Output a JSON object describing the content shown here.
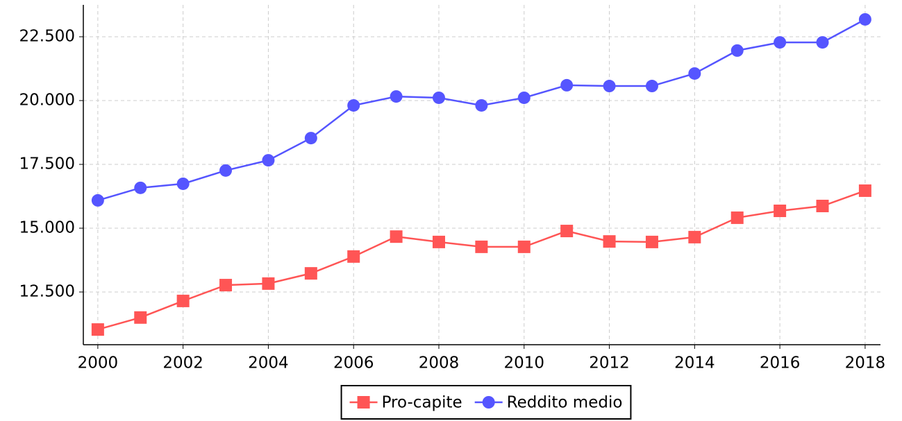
{
  "chart_data": {
    "type": "line",
    "x": [
      2000,
      2001,
      2002,
      2003,
      2004,
      2005,
      2006,
      2007,
      2008,
      2009,
      2010,
      2011,
      2012,
      2013,
      2014,
      2015,
      2016,
      2017,
      2018
    ],
    "series": [
      {
        "name": "Pro-capite",
        "color": "#ff5555",
        "marker": "square",
        "values": [
          11030,
          11500,
          12150,
          12770,
          12830,
          13230,
          13890,
          14670,
          14460,
          14270,
          14270,
          14890,
          14480,
          14460,
          14650,
          15410,
          15680,
          15870,
          16470
        ]
      },
      {
        "name": "Reddito medio",
        "color": "#5555ff",
        "marker": "circle",
        "values": [
          16090,
          16580,
          16740,
          17260,
          17660,
          18530,
          19810,
          20160,
          20110,
          19810,
          20110,
          20600,
          20570,
          20570,
          21060,
          21960,
          22280,
          22280,
          23180
        ]
      }
    ],
    "xlim": [
      1999.66,
      2018.36
    ],
    "ylim": [
      10435,
      23750
    ],
    "xticks": [
      2000,
      2002,
      2004,
      2006,
      2008,
      2010,
      2012,
      2014,
      2016,
      2018
    ],
    "yticks": [
      {
        "value": 12500,
        "label": "12.500"
      },
      {
        "value": 15000,
        "label": "15.000"
      },
      {
        "value": 17500,
        "label": "17.500"
      },
      {
        "value": 20000,
        "label": "20.000"
      },
      {
        "value": 22500,
        "label": "22.500"
      }
    ],
    "grid": true,
    "legend": "bottom"
  }
}
